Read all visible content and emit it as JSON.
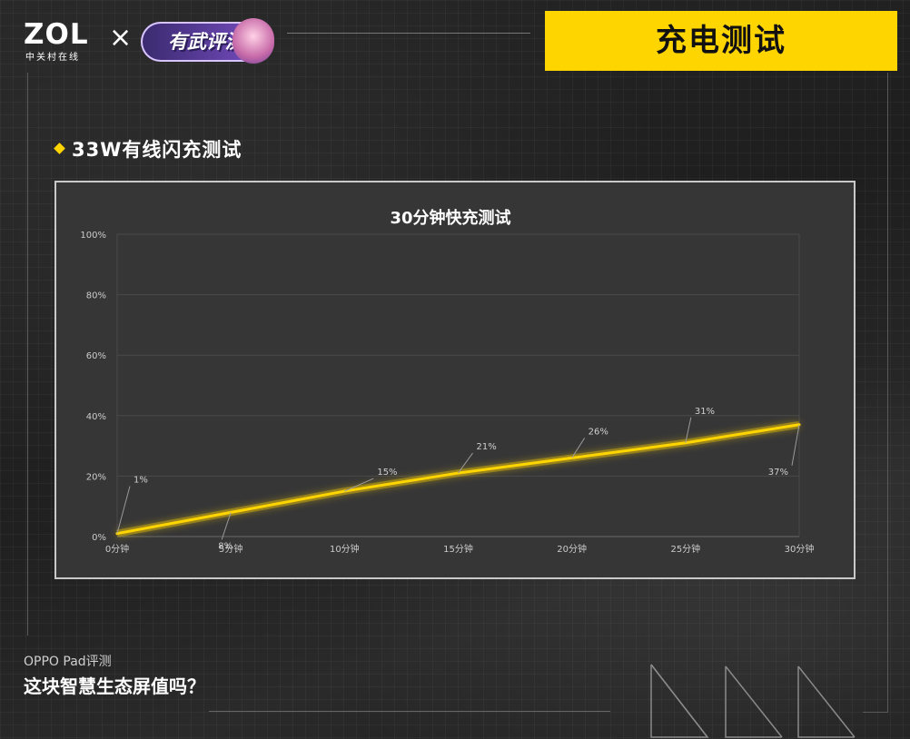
{
  "header": {
    "brand": "ZOL",
    "brand_sub": "中关村在线",
    "separator": "×",
    "partner": "有武评测",
    "title": "充电测试"
  },
  "section": {
    "title": "33W有线闪充测试"
  },
  "chart_data": {
    "type": "line",
    "title": "30分钟快充测试",
    "categories": [
      "0分钟",
      "5分钟",
      "10分钟",
      "15分钟",
      "20分钟",
      "25分钟",
      "30分钟"
    ],
    "series": [
      {
        "values": [
          1,
          8,
          15,
          21,
          26,
          31,
          37
        ]
      }
    ],
    "data_labels": [
      "1%",
      "8%",
      "15%",
      "21%",
      "26%",
      "31%",
      "37%"
    ],
    "y_ticks": [
      "0%",
      "20%",
      "40%",
      "60%",
      "80%",
      "100%"
    ],
    "ylim": [
      0,
      100
    ],
    "xlabel": "",
    "ylabel": "",
    "grid": true,
    "legend": "none",
    "line_color": "#ffd500"
  },
  "footer": {
    "subtitle": "OPPO Pad评测",
    "title": "这块智慧生态屏值吗？"
  },
  "colors": {
    "accent": "#ffd500",
    "background": "#222222",
    "panel": "#363636"
  }
}
